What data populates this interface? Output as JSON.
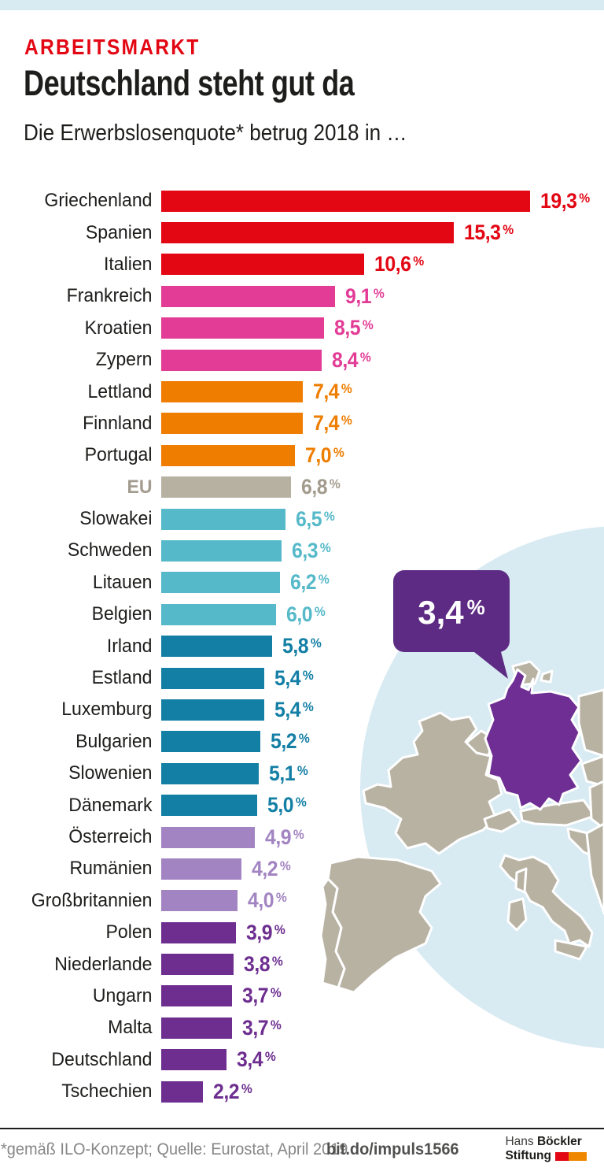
{
  "page": {
    "kicker": "ARBEITSMARKT",
    "title": "Deutschland steht gut da",
    "subtitle": "Die Erwerbslosenquote* betrug 2018 in …"
  },
  "palette": {
    "red": "#e30613",
    "pink": "#e23c96",
    "orange": "#ee7d00",
    "eu": "#b7b1a2",
    "eu_label": "#a39c8e",
    "teal": "#56b9c9",
    "blue": "#137fa5",
    "lilac": "#a284c2",
    "purple": "#6d2e8f",
    "top_strip": "#d8eaf2",
    "sea_circle": "#d8eaf2",
    "land": "#b8b2a3",
    "map_border": "#ffffff",
    "germany_highlight": "#6e2e93",
    "bubble": "#5d2b83"
  },
  "chart_data": {
    "type": "bar",
    "orientation": "horizontal",
    "title": "Die Erwerbslosenquote* betrug 2018 in …",
    "unit": "%",
    "xlim": [
      0,
      20
    ],
    "grid": false,
    "legend": false,
    "highlight": "Deutschland",
    "rows": [
      {
        "label": "Griechenland",
        "value": 19.3,
        "value_label": "19,3",
        "color": "red"
      },
      {
        "label": "Spanien",
        "value": 15.3,
        "value_label": "15,3",
        "color": "red"
      },
      {
        "label": "Italien",
        "value": 10.6,
        "value_label": "10,6",
        "color": "red"
      },
      {
        "label": "Frankreich",
        "value": 9.1,
        "value_label": "9,1",
        "color": "pink"
      },
      {
        "label": "Kroatien",
        "value": 8.5,
        "value_label": "8,5",
        "color": "pink"
      },
      {
        "label": "Zypern",
        "value": 8.4,
        "value_label": "8,4",
        "color": "pink"
      },
      {
        "label": "Lettland",
        "value": 7.4,
        "value_label": "7,4",
        "color": "orange"
      },
      {
        "label": "Finnland",
        "value": 7.4,
        "value_label": "7,4",
        "color": "orange"
      },
      {
        "label": "Portugal",
        "value": 7.0,
        "value_label": "7,0",
        "color": "orange"
      },
      {
        "label": "EU",
        "value": 6.8,
        "value_label": "6,8",
        "color": "eu"
      },
      {
        "label": "Slowakei",
        "value": 6.5,
        "value_label": "6,5",
        "color": "teal"
      },
      {
        "label": "Schweden",
        "value": 6.3,
        "value_label": "6,3",
        "color": "teal"
      },
      {
        "label": "Litauen",
        "value": 6.2,
        "value_label": "6,2",
        "color": "teal"
      },
      {
        "label": "Belgien",
        "value": 6.0,
        "value_label": "6,0",
        "color": "teal"
      },
      {
        "label": "Irland",
        "value": 5.8,
        "value_label": "5,8",
        "color": "blue"
      },
      {
        "label": "Estland",
        "value": 5.4,
        "value_label": "5,4",
        "color": "blue"
      },
      {
        "label": "Luxemburg",
        "value": 5.4,
        "value_label": "5,4",
        "color": "blue"
      },
      {
        "label": "Bulgarien",
        "value": 5.2,
        "value_label": "5,2",
        "color": "blue"
      },
      {
        "label": "Slowenien",
        "value": 5.1,
        "value_label": "5,1",
        "color": "blue"
      },
      {
        "label": "Dänemark",
        "value": 5.0,
        "value_label": "5,0",
        "color": "blue"
      },
      {
        "label": "Österreich",
        "value": 4.9,
        "value_label": "4,9",
        "color": "lilac"
      },
      {
        "label": "Rumänien",
        "value": 4.2,
        "value_label": "4,2",
        "color": "lilac"
      },
      {
        "label": "Großbritannien",
        "value": 4.0,
        "value_label": "4,0",
        "color": "lilac"
      },
      {
        "label": "Polen",
        "value": 3.9,
        "value_label": "3,9",
        "color": "purple"
      },
      {
        "label": "Niederlande",
        "value": 3.8,
        "value_label": "3,8",
        "color": "purple"
      },
      {
        "label": "Ungarn",
        "value": 3.7,
        "value_label": "3,7",
        "color": "purple"
      },
      {
        "label": "Malta",
        "value": 3.7,
        "value_label": "3,7",
        "color": "purple"
      },
      {
        "label": "Deutschland",
        "value": 3.4,
        "value_label": "3,4",
        "color": "purple"
      },
      {
        "label": "Tschechien",
        "value": 2.2,
        "value_label": "2,2",
        "color": "purple"
      }
    ]
  },
  "map": {
    "bubble": {
      "number": "3,4",
      "percent_sign": "%"
    },
    "highlight_country": "Deutschland"
  },
  "footer": {
    "note": "*gemäß ILO-Konzept; Quelle: Eurostat, April 2019",
    "link": "bit.do/impuls1566",
    "logo": {
      "hans": "Hans",
      "boeckler": "Böckler",
      "stiftung": "Stiftung"
    }
  }
}
